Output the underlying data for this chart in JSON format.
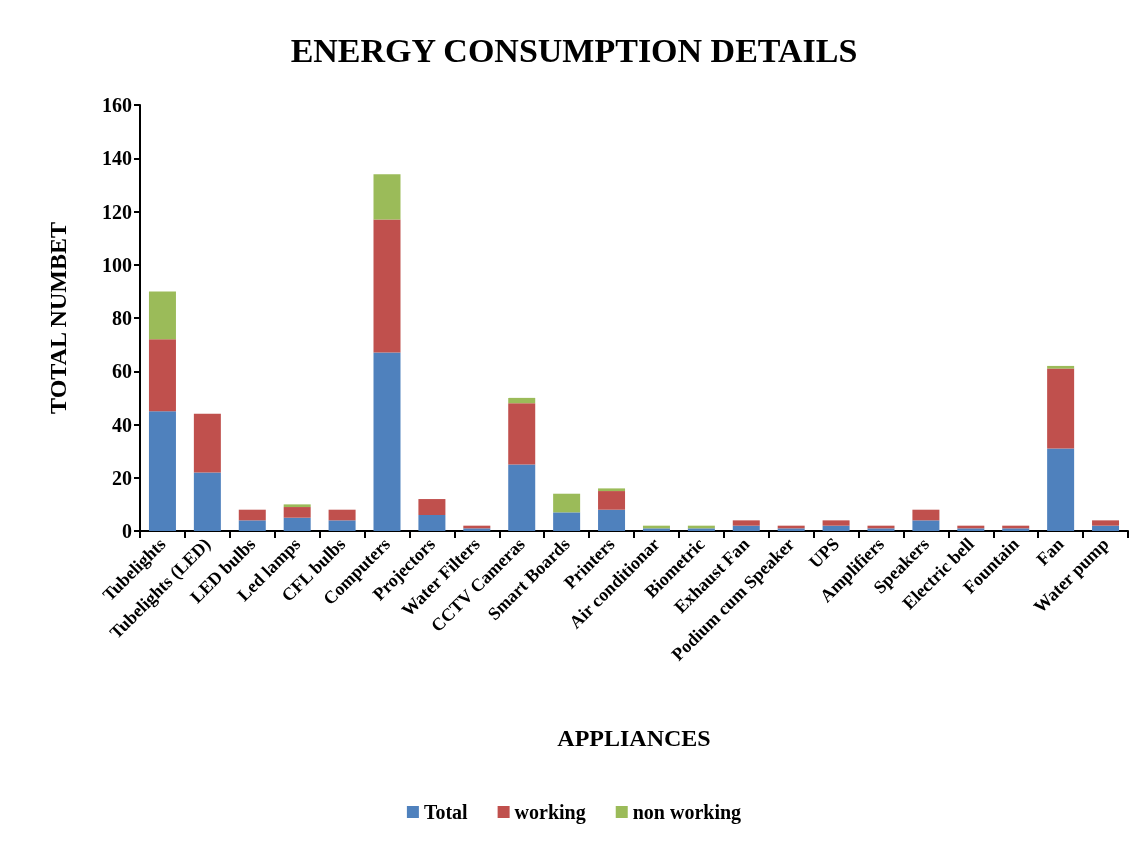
{
  "chart_data": {
    "type": "bar",
    "title": "ENERGY CONSUMPTION DETAILS",
    "xlabel": "APPLIANCES",
    "ylabel": "TOTAL NUMBET",
    "categories": [
      "Tubelights",
      "Tubelights (LED)",
      "LED bulbs",
      "Led lamps",
      "CFL bulbs",
      "Computers",
      "Projectors",
      "Water Filters",
      "CCTV Cameras",
      "Smart Boards",
      "Printers",
      "Air conditionar",
      "Biometric",
      "Exhaust Fan",
      "Podium cum Speaker",
      "UPS",
      "Amplifiers",
      "Speakers",
      "Electric bell",
      "Fountain",
      "Fan",
      "Water pump"
    ],
    "series": [
      {
        "name": "Total",
        "color": "#4f81bd",
        "values": [
          45,
          22,
          4,
          5,
          4,
          67,
          6,
          1,
          25,
          7,
          8,
          1,
          1,
          2,
          1,
          2,
          1,
          4,
          1,
          1,
          31,
          2
        ]
      },
      {
        "name": "working",
        "color": "#c0504d",
        "values": [
          27,
          22,
          4,
          4,
          4,
          50,
          6,
          1,
          23,
          0,
          7,
          0,
          0,
          2,
          1,
          2,
          1,
          4,
          1,
          1,
          30,
          2
        ]
      },
      {
        "name": "non working",
        "color": "#9bbb59",
        "values": [
          18,
          0,
          0,
          1,
          0,
          17,
          0,
          0,
          2,
          7,
          1,
          1,
          1,
          0,
          0,
          0,
          0,
          0,
          0,
          0,
          1,
          0
        ]
      }
    ],
    "stacked": true,
    "ylim": [
      0,
      160
    ],
    "yticks": [
      0,
      20,
      40,
      60,
      80,
      100,
      120,
      140,
      160
    ],
    "grid": false,
    "legend": "bottom"
  }
}
